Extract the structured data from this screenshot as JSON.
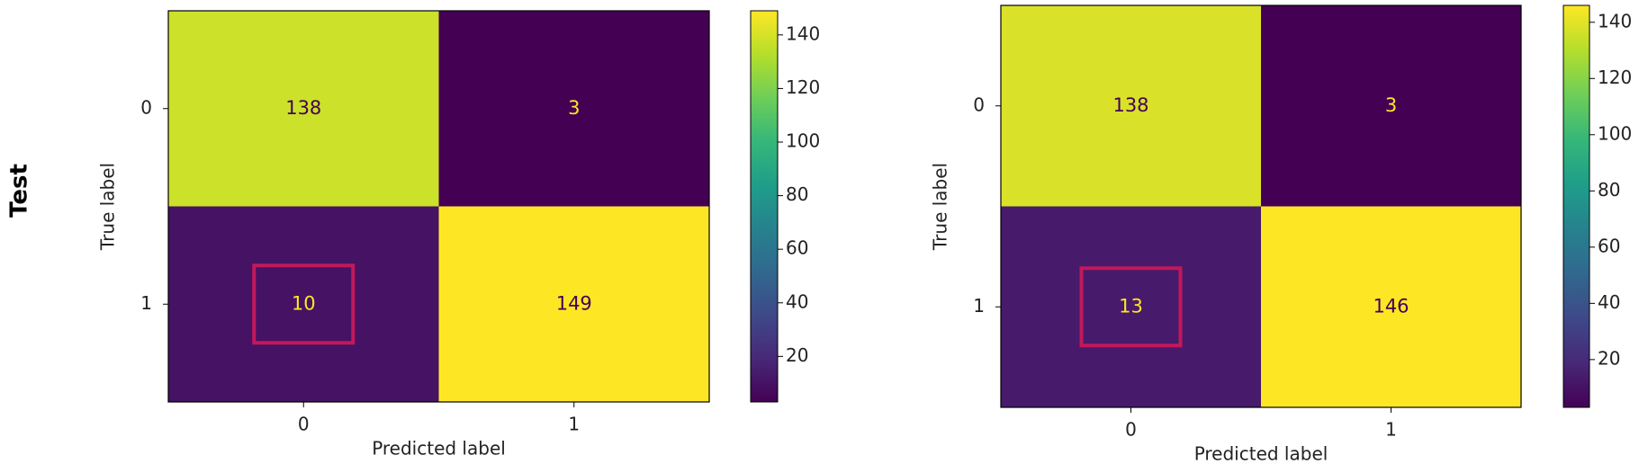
{
  "row_label": "Test",
  "chart_data": [
    {
      "type": "heatmap",
      "colormap": "viridis",
      "x_categories": [
        "0",
        "1"
      ],
      "y_categories": [
        "0",
        "1"
      ],
      "values": [
        [
          138,
          3
        ],
        [
          10,
          149
        ]
      ],
      "xlabel": "Predicted label",
      "ylabel": "True label",
      "clim": [
        3,
        149
      ],
      "cticks": [
        20,
        40,
        60,
        80,
        100,
        120,
        140
      ],
      "highlight": {
        "row": 1,
        "col": 0,
        "color": "#c2185b"
      }
    },
    {
      "type": "heatmap",
      "colormap": "viridis",
      "x_categories": [
        "0",
        "1"
      ],
      "y_categories": [
        "0",
        "1"
      ],
      "values": [
        [
          138,
          3
        ],
        [
          13,
          146
        ]
      ],
      "xlabel": "Predicted label",
      "ylabel": "True label",
      "clim": [
        3,
        146
      ],
      "cticks": [
        20,
        40,
        60,
        80,
        100,
        120,
        140
      ],
      "highlight": {
        "row": 1,
        "col": 0,
        "color": "#c2185b"
      }
    }
  ]
}
